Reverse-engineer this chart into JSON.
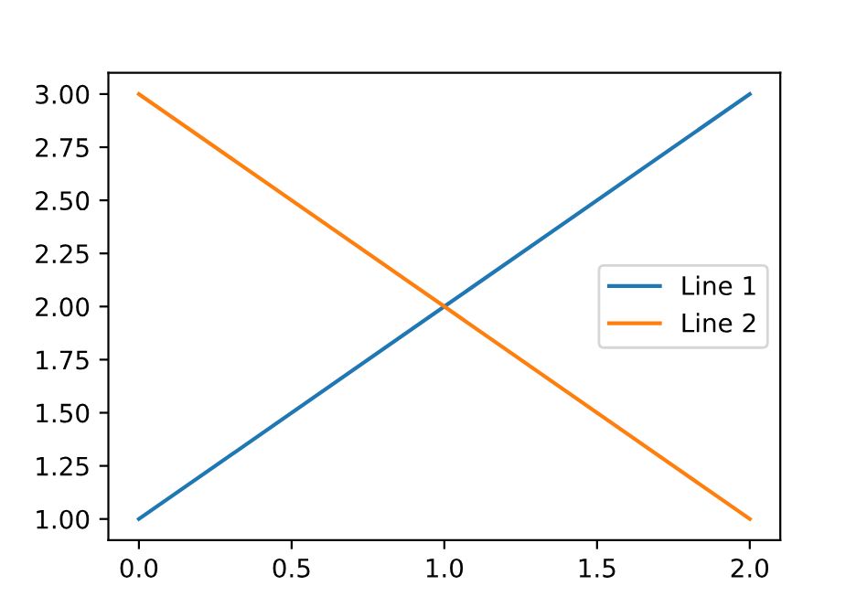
{
  "chart_data": {
    "type": "line",
    "x": [
      0,
      1,
      2
    ],
    "series": [
      {
        "name": "Line 1",
        "color": "#1f77b4",
        "values": [
          1,
          2,
          3
        ]
      },
      {
        "name": "Line 2",
        "color": "#ff7f0e",
        "values": [
          3,
          2,
          1
        ]
      }
    ],
    "xlim": [
      -0.1,
      2.1
    ],
    "ylim": [
      0.9,
      3.1
    ],
    "xticks": [
      {
        "value": 0,
        "label": "0.0"
      },
      0.5,
      {
        "value": 1,
        "label": "1.0"
      },
      1.5,
      {
        "value": 2,
        "label": "2.0"
      }
    ],
    "yticks": [
      {
        "value": 1,
        "label": "1.00"
      },
      1.25,
      {
        "value": 1.5,
        "label": "1.50"
      },
      1.75,
      {
        "value": 2,
        "label": "2.00"
      },
      2.25,
      {
        "value": 2.5,
        "label": "2.50"
      },
      2.75,
      {
        "value": 3,
        "label": "3.00"
      }
    ],
    "legend": "center right",
    "grid": false,
    "marker": "none",
    "line_style": "solid"
  }
}
